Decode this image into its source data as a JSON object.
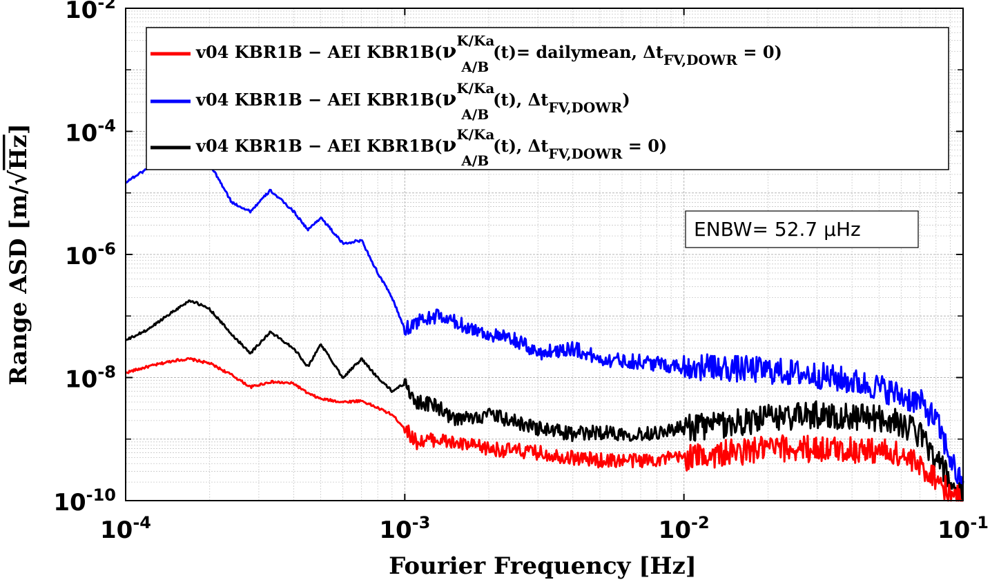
{
  "chart_data": {
    "type": "line",
    "title": "",
    "xlabel": "Fourier Frequency [Hz]",
    "ylabel_parts": [
      "Range ASD [m/",
      "Hz",
      "]"
    ],
    "xscale": "log",
    "yscale": "log",
    "xlim": [
      0.0001,
      0.1
    ],
    "ylim": [
      1e-10,
      0.01
    ],
    "grid": true,
    "legend_position": "top",
    "x_ticks": [
      {
        "value": 0.0001,
        "base": "10",
        "exp": "-4"
      },
      {
        "value": 0.001,
        "base": "10",
        "exp": "-3"
      },
      {
        "value": 0.01,
        "base": "10",
        "exp": "-2"
      },
      {
        "value": 0.1,
        "base": "10",
        "exp": "-1"
      }
    ],
    "y_ticks": [
      {
        "value": 1e-10,
        "base": "10",
        "exp": "-10"
      },
      {
        "value": 1e-08,
        "base": "10",
        "exp": "-8"
      },
      {
        "value": 1e-06,
        "base": "10",
        "exp": "-6"
      },
      {
        "value": 0.0001,
        "base": "10",
        "exp": "-4"
      },
      {
        "value": 0.01,
        "base": "10",
        "exp": "-2"
      }
    ],
    "annotation": "ENBW= 52.7 µHz",
    "series": [
      {
        "name": "v04 KBR1B − AEI KBR1B(ν A/B K/Ka (t)= dailymean, Δt FV,DOWR = 0)",
        "legend_main": "v04 KBR1B − AEI KBR1B(",
        "legend_nu": "ν",
        "legend_sup": "K/Ka",
        "legend_sub": "A/B",
        "legend_mid": "(t)= dailymean, Δt",
        "legend_sub2": "FV,DOWR",
        "legend_end": " = 0)",
        "color": "#ff0000",
        "x": [
          0.0001,
          0.00012,
          0.00015,
          0.00017,
          0.0002,
          0.00024,
          0.00028,
          0.00033,
          0.0004,
          0.00045,
          0.0005,
          0.0006,
          0.0007,
          0.0008,
          0.0009,
          0.001,
          0.0011,
          0.0013,
          0.0015,
          0.002,
          0.003,
          0.004,
          0.005,
          0.007,
          0.01,
          0.015,
          0.02,
          0.03,
          0.05,
          0.06,
          0.07,
          0.08,
          0.09,
          0.1
        ],
        "y": [
          1.2e-08,
          1.5e-08,
          1.9e-08,
          2e-08,
          1.7e-08,
          1.1e-08,
          7e-09,
          8.5e-09,
          8e-09,
          5.5e-09,
          4.5e-09,
          4e-09,
          4.2e-09,
          3.2e-09,
          2.5e-09,
          1.5e-09,
          9e-10,
          1e-09,
          8.5e-10,
          7e-10,
          6e-10,
          5e-10,
          4.5e-10,
          4.5e-10,
          5e-10,
          6e-10,
          7e-10,
          7e-10,
          6.5e-10,
          5.5e-10,
          3.5e-10,
          2.5e-10,
          1.2e-10,
          1e-10
        ]
      },
      {
        "name": "v04 KBR1B − AEI KBR1B(ν A/B K/Ka (t), Δt FV,DOWR)",
        "legend_main": "v04 KBR1B − AEI KBR1B(",
        "legend_nu": "ν",
        "legend_sup": "K/Ka",
        "legend_sub": "A/B",
        "legend_mid": "(t), Δt",
        "legend_sub2": "FV,DOWR",
        "legend_end": ")",
        "color": "#0000ff",
        "x": [
          0.0001,
          0.00012,
          0.00014,
          0.00017,
          0.0002,
          0.00024,
          0.00028,
          0.00033,
          0.0004,
          0.00045,
          0.0005,
          0.0006,
          0.0007,
          0.0008,
          0.0009,
          0.001,
          0.0011,
          0.0013,
          0.0015,
          0.002,
          0.0025,
          0.003,
          0.004,
          0.005,
          0.007,
          0.01,
          0.015,
          0.02,
          0.03,
          0.05,
          0.06,
          0.07,
          0.08,
          0.09,
          0.1
        ],
        "y": [
          1.5e-05,
          2.5e-05,
          5e-05,
          8e-05,
          3e-05,
          7e-06,
          5e-06,
          1.1e-05,
          5e-06,
          2.5e-06,
          4e-06,
          1.5e-06,
          1.7e-06,
          5e-07,
          2e-07,
          6e-08,
          8e-08,
          1e-07,
          8e-08,
          5e-08,
          4e-08,
          2.5e-08,
          3e-08,
          2e-08,
          1.8e-08,
          1.5e-08,
          1.4e-08,
          1.3e-08,
          1.1e-08,
          7e-09,
          5e-09,
          4e-09,
          2e-09,
          5e-10,
          1.5e-10
        ]
      },
      {
        "name": "v04 KBR1B − AEI KBR1B(ν A/B K/Ka (t), Δt FV,DOWR = 0)",
        "legend_main": "v04 KBR1B − AEI KBR1B(",
        "legend_nu": "ν",
        "legend_sup": "K/Ka",
        "legend_sub": "A/B",
        "legend_mid": "(t), Δt",
        "legend_sub2": "FV,DOWR",
        "legend_end": " = 0)",
        "color": "#000000",
        "x": [
          0.0001,
          0.00012,
          0.00014,
          0.00017,
          0.0002,
          0.00024,
          0.00028,
          0.00033,
          0.0004,
          0.00045,
          0.0005,
          0.0006,
          0.0007,
          0.0008,
          0.0009,
          0.001,
          0.0011,
          0.0013,
          0.0015,
          0.002,
          0.003,
          0.004,
          0.005,
          0.007,
          0.01,
          0.015,
          0.02,
          0.03,
          0.05,
          0.06,
          0.07,
          0.08,
          0.09,
          0.1
        ],
        "y": [
          4e-08,
          6e-08,
          1e-07,
          1.8e-07,
          1.3e-07,
          5e-08,
          2.5e-08,
          5.5e-08,
          3e-08,
          1.5e-08,
          3.5e-08,
          1e-08,
          2e-08,
          1e-08,
          6e-09,
          8e-09,
          4e-09,
          3.5e-09,
          2e-09,
          2.5e-09,
          1.5e-09,
          1.2e-09,
          1.3e-09,
          1.2e-09,
          1.5e-09,
          1.8e-09,
          2.2e-09,
          2.5e-09,
          2.2e-09,
          1.8e-09,
          1.2e-09,
          5e-10,
          2e-10,
          1e-10
        ]
      }
    ]
  }
}
